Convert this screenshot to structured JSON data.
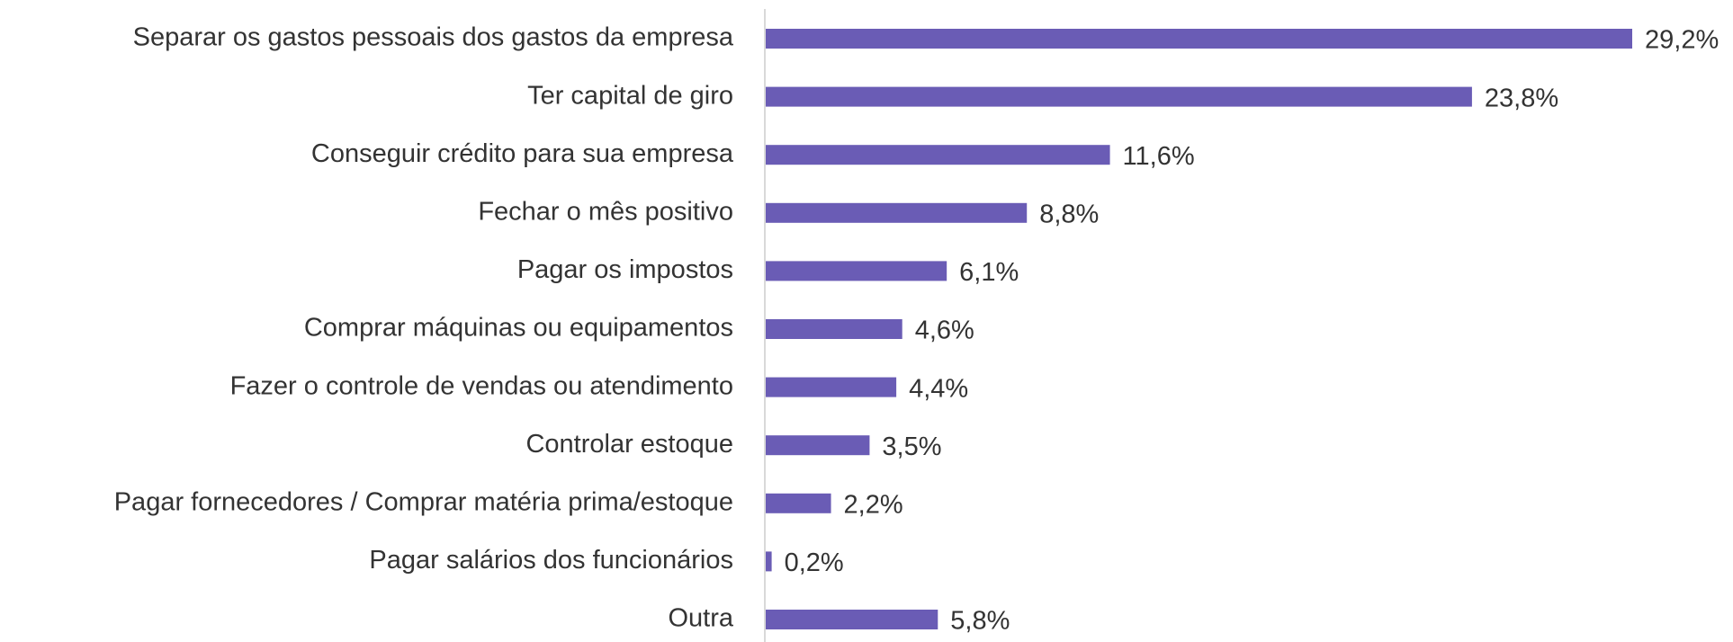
{
  "chart_data": {
    "type": "bar",
    "orientation": "horizontal",
    "categories": [
      "Separar os gastos pessoais dos gastos da empresa",
      "Ter capital de giro",
      "Conseguir crédito para sua empresa",
      "Fechar o mês positivo",
      "Pagar os impostos",
      "Comprar máquinas ou equipamentos",
      "Fazer o controle de vendas ou atendimento",
      "Controlar estoque",
      "Pagar fornecedores / Comprar matéria prima/estoque",
      "Pagar salários dos funcionários",
      "Outra"
    ],
    "values": [
      29.2,
      23.8,
      11.6,
      8.8,
      6.1,
      4.6,
      4.4,
      3.5,
      2.2,
      0.2,
      5.8
    ],
    "value_labels": [
      "29,2%",
      "23,8%",
      "11,6%",
      "8,8%",
      "6,1%",
      "4,6%",
      "4,4%",
      "3,5%",
      "2,2%",
      "0,2%",
      "5,8%"
    ],
    "color": "#6a5cb5",
    "grid": false
  }
}
